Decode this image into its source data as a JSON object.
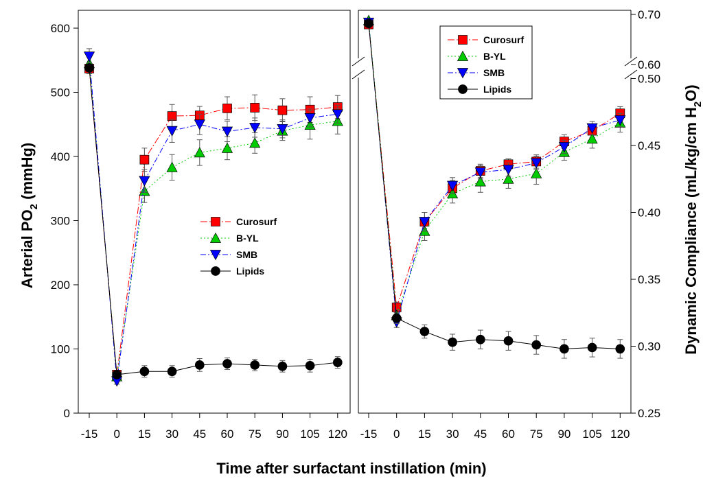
{
  "chart_data": [
    {
      "type": "line",
      "xlabel": "Time after surfactant instillation (min)",
      "ylabel_main": "Arterial PO",
      "ylabel_sub": "2",
      "ylabel_tail": " (mmHg)",
      "x_tick_labels": [
        "-15",
        "0",
        "15",
        "30",
        "45",
        "60",
        "75",
        "90",
        "105",
        "120"
      ],
      "ylim": [
        0,
        620
      ],
      "y_ticks": [
        0,
        100,
        200,
        300,
        400,
        500,
        600
      ],
      "legend_placement": "center-right",
      "series": [
        {
          "name": "Curosurf",
          "color": "#ff0000",
          "marker": "square",
          "dash": "10,3,2,3",
          "values": [
            537,
            60,
            395,
            463,
            464,
            475,
            476,
            472,
            473,
            477
          ],
          "errors": [
            8,
            5,
            18,
            18,
            14,
            18,
            20,
            18,
            20,
            18
          ]
        },
        {
          "name": "B-YL",
          "color": "#00cc00",
          "marker": "triangle-up",
          "dash": "2,3",
          "values": [
            545,
            57,
            346,
            383,
            406,
            413,
            421,
            440,
            449,
            455
          ],
          "errors": [
            10,
            5,
            18,
            20,
            20,
            18,
            16,
            15,
            22,
            20
          ]
        },
        {
          "name": "SMB",
          "color": "#0000ff",
          "marker": "triangle-down",
          "dash": "8,3,2,3",
          "values": [
            556,
            50,
            362,
            440,
            450,
            439,
            445,
            443,
            460,
            466
          ],
          "errors": [
            12,
            5,
            18,
            18,
            16,
            16,
            15,
            14,
            14,
            14
          ]
        },
        {
          "name": "Lipids",
          "color": "#000000",
          "marker": "circle",
          "dash": "",
          "values": [
            538,
            60,
            65,
            65,
            75,
            77,
            75,
            73,
            74,
            79
          ],
          "errors": [
            8,
            5,
            9,
            9,
            10,
            9,
            9,
            9,
            10,
            9
          ]
        }
      ]
    },
    {
      "type": "line",
      "ylabel": "Dynamic Compliance (mL/kg/cm H₂O)",
      "ylabel_main": "Dynamic Compliance (mL/kg/cm H",
      "ylabel_sub": "2",
      "ylabel_tail": "O)",
      "x_tick_labels": [
        "-15",
        "0",
        "15",
        "30",
        "45",
        "60",
        "75",
        "90",
        "105",
        "120"
      ],
      "axis_break": {
        "lower_range": [
          0.25,
          0.5
        ],
        "upper_range": [
          0.6,
          0.7
        ]
      },
      "y_ticks_lower": [
        "0.25",
        "0.30",
        "0.35",
        "0.40",
        "0.45",
        "0.50"
      ],
      "y_ticks_upper": [
        "0.60",
        "0.70"
      ],
      "legend_placement": "top-left",
      "series": [
        {
          "name": "Curosurf",
          "color": "#ff0000",
          "marker": "square",
          "dash": "10,3,2,3",
          "values": [
            0.68,
            0.329,
            0.393,
            0.418,
            0.431,
            0.436,
            0.438,
            0.453,
            0.461,
            0.474
          ],
          "errors": [
            0.003,
            0.004,
            0.007,
            0.006,
            0.005,
            0.004,
            0.005,
            0.005,
            0.005,
            0.005
          ]
        },
        {
          "name": "B-YL",
          "color": "#00cc00",
          "marker": "triangle-up",
          "dash": "2,3",
          "values": [
            0.688,
            0.323,
            0.386,
            0.414,
            0.423,
            0.425,
            0.429,
            0.445,
            0.455,
            0.467
          ],
          "errors": [
            0.003,
            0.004,
            0.007,
            0.007,
            0.008,
            0.007,
            0.008,
            0.006,
            0.007,
            0.007
          ]
        },
        {
          "name": "SMB",
          "color": "#0000ff",
          "marker": "triangle-down",
          "dash": "8,3,2,3",
          "values": [
            0.684,
            0.318,
            0.393,
            0.42,
            0.43,
            0.432,
            0.437,
            0.449,
            0.463,
            0.469
          ],
          "errors": [
            0.003,
            0.004,
            0.007,
            0.006,
            0.005,
            0.005,
            0.005,
            0.005,
            0.005,
            0.005
          ]
        },
        {
          "name": "Lipids",
          "color": "#000000",
          "marker": "circle",
          "dash": "",
          "values": [
            0.682,
            0.321,
            0.311,
            0.303,
            0.305,
            0.304,
            0.301,
            0.298,
            0.299,
            0.298
          ],
          "errors": [
            0.003,
            0.004,
            0.005,
            0.006,
            0.007,
            0.007,
            0.007,
            0.007,
            0.007,
            0.007
          ]
        }
      ]
    }
  ]
}
